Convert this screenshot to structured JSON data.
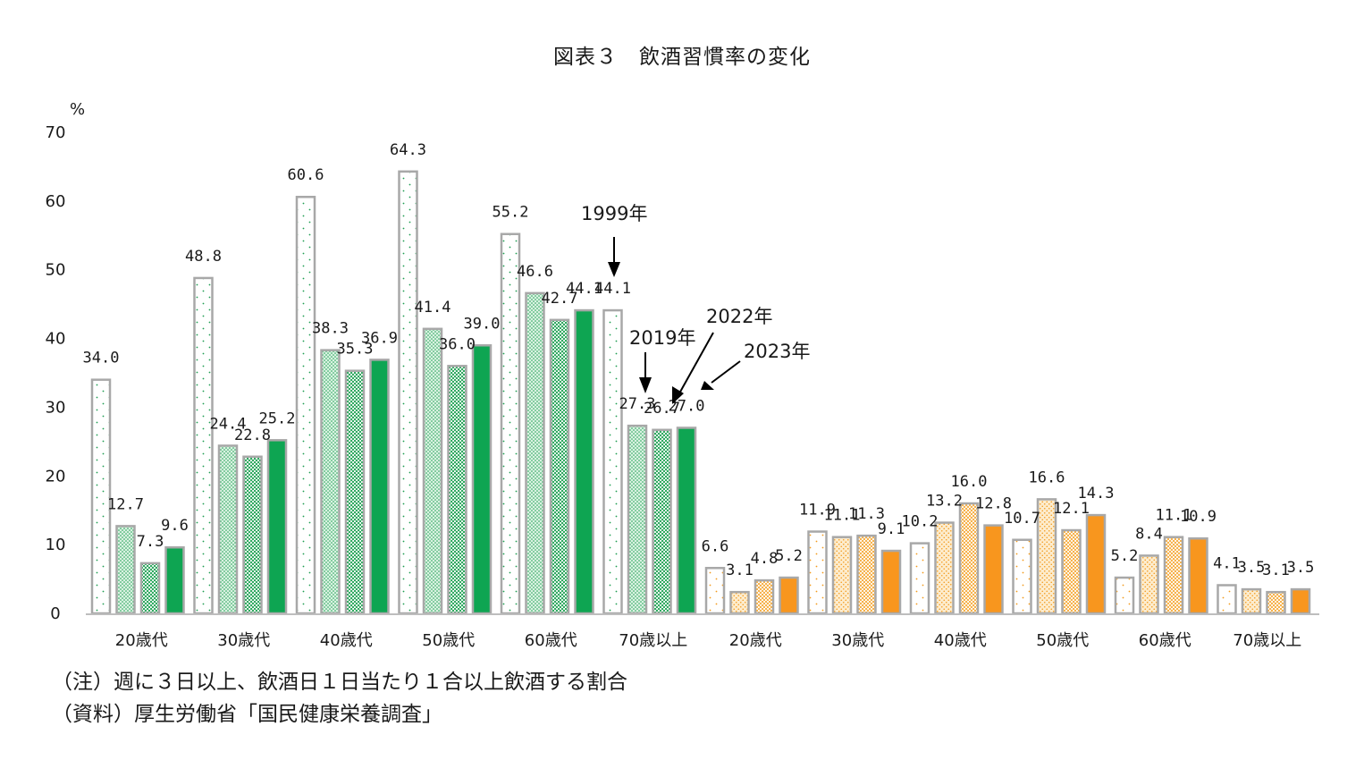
{
  "title": "図表３　飲酒習慣率の変化",
  "unit_label": "%",
  "notes": [
    "（注）週に３日以上、飲酒日１日当たり１合以上飲酒する割合",
    "（資料）厚生労働省「国民健康栄養調査」"
  ],
  "annotations": {
    "y1999": "1999年",
    "y2019": "2019年",
    "y2022": "2022年",
    "y2023": "2023年"
  },
  "colors": {
    "male_1999": "#ffffff",
    "male_2019": "#d9f2e1",
    "male_2022": "#2fa85f",
    "male_2023": "#0ea552",
    "female_1999": "#ffffff",
    "female_2019": "#fdeccd",
    "female_2022": "#f6b14a",
    "female_2023": "#f8961e",
    "bar_outline": "#a8a8a8",
    "male_dot": "#1e9e52",
    "female_dot": "#f39a1c"
  },
  "chart_data": {
    "type": "bar",
    "ylim": [
      0,
      70
    ],
    "yticks": [
      0,
      10,
      20,
      30,
      40,
      50,
      60,
      70
    ],
    "categories": [
      "20歳代",
      "30歳代",
      "40歳代",
      "50歳代",
      "60歳代",
      "70歳以上",
      "20歳代",
      "30歳代",
      "40歳代",
      "50歳代",
      "60歳代",
      "70歳以上"
    ],
    "series": [
      {
        "name": "1999年",
        "values": [
          34.0,
          48.8,
          60.6,
          64.3,
          55.2,
          44.1,
          6.6,
          11.9,
          10.2,
          10.7,
          5.2,
          4.1
        ]
      },
      {
        "name": "2019年",
        "values": [
          12.7,
          24.4,
          38.3,
          41.4,
          46.6,
          27.3,
          3.1,
          11.1,
          13.2,
          16.6,
          8.4,
          3.5
        ]
      },
      {
        "name": "2022年",
        "values": [
          7.3,
          22.8,
          35.3,
          36.0,
          42.7,
          26.7,
          4.8,
          11.3,
          16.0,
          12.1,
          11.1,
          3.1
        ]
      },
      {
        "name": "2023年",
        "values": [
          9.6,
          25.2,
          36.9,
          39.0,
          44.1,
          27.0,
          5.2,
          9.1,
          12.8,
          14.3,
          10.9,
          3.5
        ]
      }
    ],
    "data_labels": [
      [
        "34.0",
        "48.8",
        "60.6",
        "64.3",
        "55.2",
        "44.1",
        "6.6",
        "11.9",
        "10.2",
        "10.7",
        "5.2",
        "4.1"
      ],
      [
        "12.7",
        "24.4",
        "38.3",
        "41.4",
        "46.6",
        "27.3",
        "3.1",
        "11.1",
        "13.2",
        "16.6",
        "8.4",
        "3.5"
      ],
      [
        "7.3",
        "22.8",
        "35.3",
        "36.0",
        "42.7",
        "26.7",
        "4.8",
        "11.3",
        "16.0",
        "12.1",
        "11.1",
        "3.1"
      ],
      [
        "9.6",
        "25.2",
        "36.9",
        "39.0",
        "44.1",
        "27.0",
        "5.2",
        "9.1",
        "12.8",
        "14.3",
        "10.9",
        "3.5"
      ]
    ],
    "legend": "none"
  }
}
